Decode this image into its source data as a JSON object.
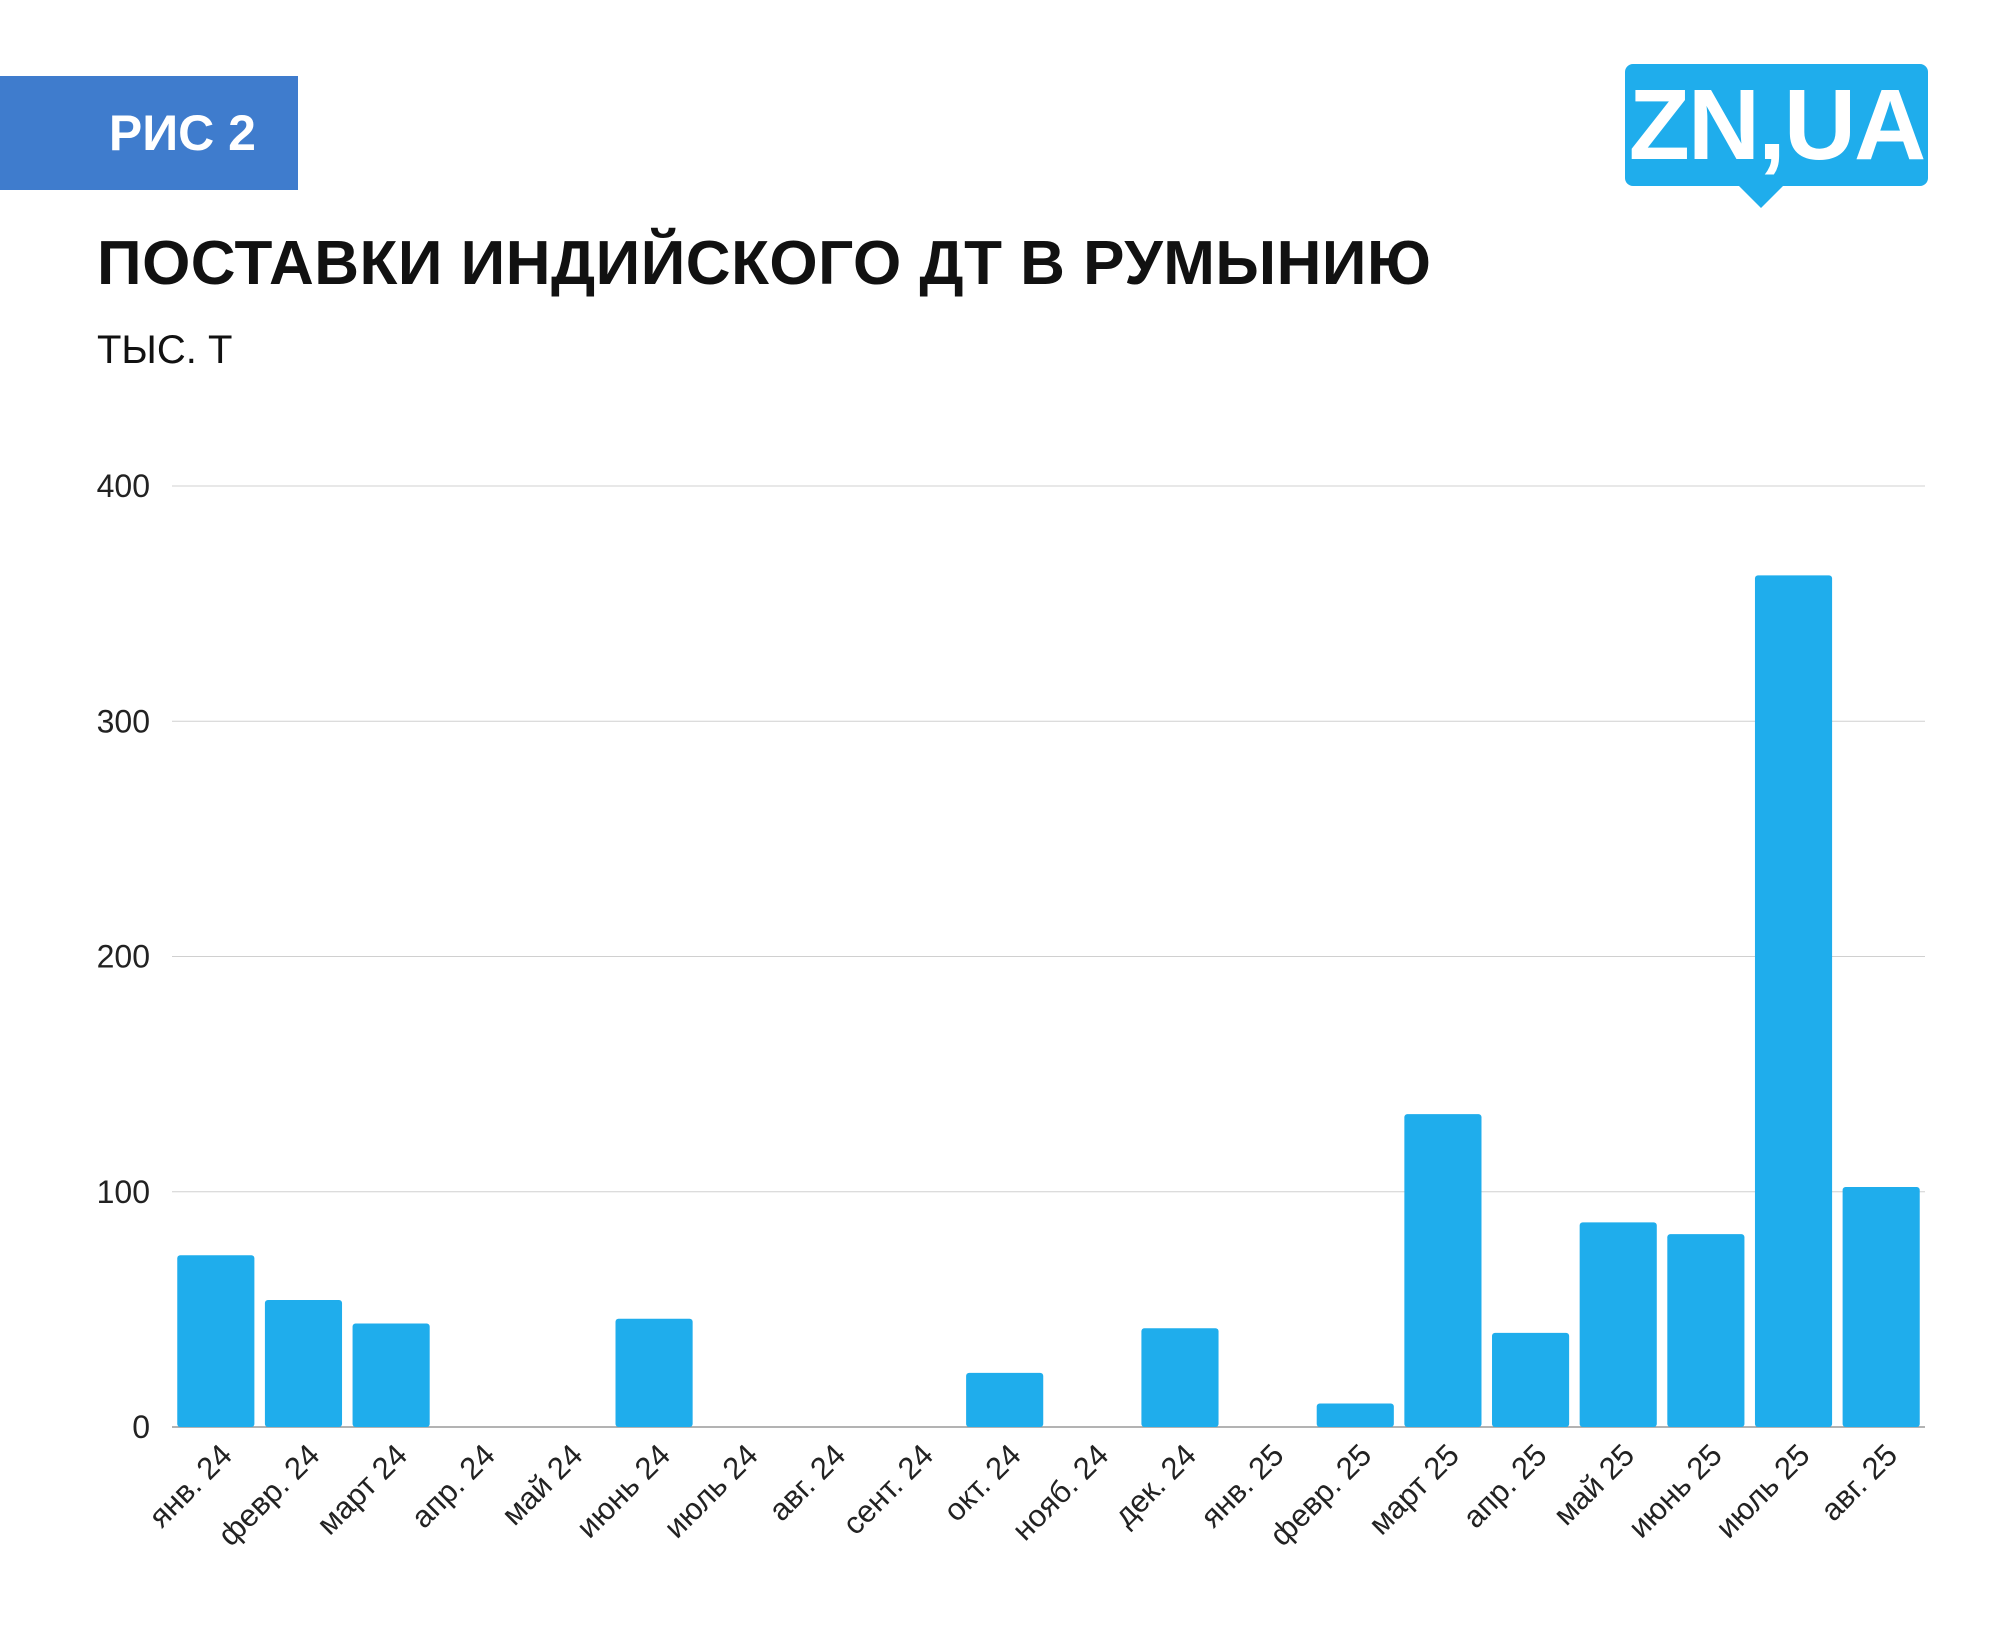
{
  "figure_label": "РИС 2",
  "logo": {
    "text": "ZN,UA",
    "color": "#1fadec"
  },
  "header": {
    "title": "ПОСТАВКИ ИНДИЙСКОГО ДТ В РУМЫНИЮ",
    "unit": "ТЫС. Т"
  },
  "colors": {
    "bar": "#1fadec",
    "badge": "#3f7ccd",
    "grid": "#d0d0d0"
  },
  "chart_data": {
    "type": "bar",
    "title": "ПОСТАВКИ ИНДИЙСКОГО ДТ В РУМЫНИЮ",
    "ylabel": "ТЫС. Т",
    "xlabel": "",
    "ylim": [
      0,
      400
    ],
    "yticks": [
      0,
      100,
      200,
      300,
      400
    ],
    "grid": true,
    "categories": [
      "янв. 24",
      "февр. 24",
      "март 24",
      "апр. 24",
      "май 24",
      "июнь 24",
      "июль 24",
      "авг. 24",
      "сент. 24",
      "окт. 24",
      "нояб. 24",
      "дек. 24",
      "янв. 25",
      "февр. 25",
      "март 25",
      "апр. 25",
      "май 25",
      "июнь 25",
      "июль 25",
      "авг. 25"
    ],
    "values": [
      73,
      54,
      44,
      0,
      0,
      46,
      0,
      0,
      0,
      23,
      0,
      42,
      0,
      10,
      133,
      40,
      87,
      82,
      362,
      102
    ]
  }
}
